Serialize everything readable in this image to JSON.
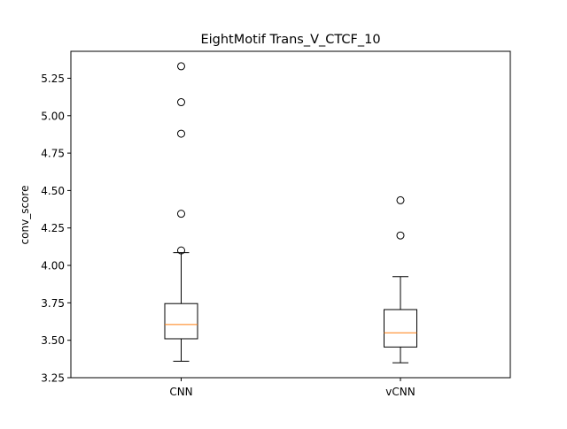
{
  "chart_data": {
    "type": "box",
    "title": "EightMotif Trans_V_CTCF_10",
    "xlabel": "",
    "ylabel": "conv_score",
    "ylim": [
      3.25,
      5.43
    ],
    "yticks": [
      "3.25",
      "3.50",
      "3.75",
      "4.00",
      "4.25",
      "4.50",
      "4.75",
      "5.00",
      "5.25"
    ],
    "grid": false,
    "categories": [
      "CNN",
      "vCNN"
    ],
    "boxes": [
      {
        "category": "CNN",
        "whisker_low": 3.36,
        "q1": 3.51,
        "median": 3.605,
        "q3": 3.745,
        "whisker_high": 4.085,
        "outliers": [
          4.1,
          4.345,
          4.88,
          5.09,
          5.33
        ]
      },
      {
        "category": "vCNN",
        "whisker_low": 3.35,
        "q1": 3.455,
        "median": 3.55,
        "q3": 3.705,
        "whisker_high": 3.925,
        "outliers": [
          4.2,
          4.435
        ]
      }
    ],
    "colors": {
      "box": "#000000",
      "median": "#ff7f0e",
      "outlier_edge": "#000000"
    }
  }
}
